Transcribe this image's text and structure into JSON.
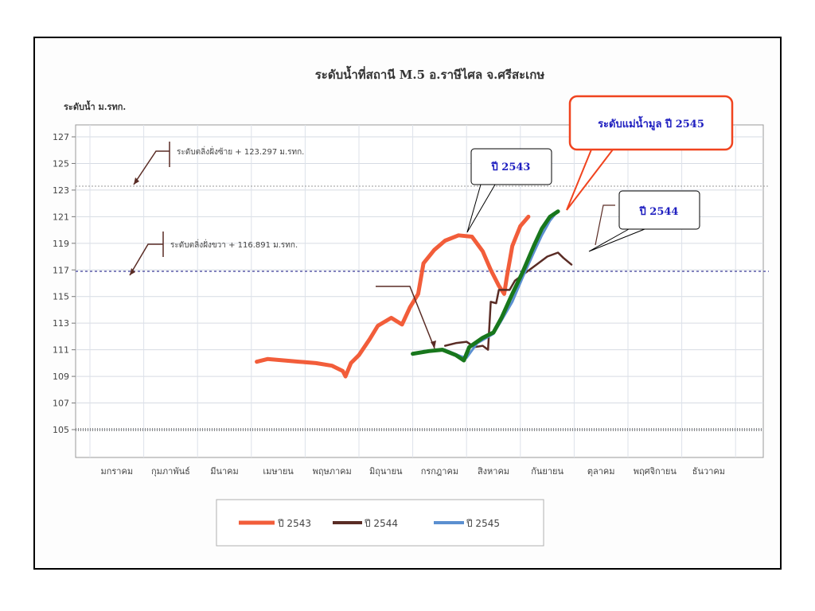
{
  "chart_data": {
    "type": "line",
    "title": "ระดับน้ำที่สถานี M.5  อ.ราษีไศล  จ.ศรีสะเกษ",
    "ylabel": "ระดับน้ำ ม.รทก.",
    "xlabel": "",
    "ylim": [
      104,
      128
    ],
    "yticks": [
      105,
      107,
      109,
      111,
      113,
      115,
      117,
      119,
      121,
      123,
      125,
      127
    ],
    "categories": [
      "มกราคม",
      "กุมภาพันธ์",
      "มีนาคม",
      "เมษายน",
      "พฤษภาคม",
      "มิถุนายน",
      "กรกฎาคม",
      "สิงหาคม",
      "กันยายน",
      "ตุลาคม",
      "พฤศจิกายน",
      "ธันวาคม"
    ],
    "grid": true,
    "legend_position": "bottom",
    "reference_lines": [
      {
        "label": "ระดับตลิ่งฝั่งซ้าย + 123.297 ม.รทก.",
        "value": 123.297
      },
      {
        "label": "ระดับตลิ่งฝั่งขวา + 116.891 ม.รทก.",
        "value": 116.891
      },
      {
        "value": 105
      }
    ],
    "series": [
      {
        "name": "ปี 2543",
        "color": "#f25d3a",
        "points": [
          [
            3.1,
            110.1
          ],
          [
            3.3,
            110.3
          ],
          [
            3.6,
            110.2
          ],
          [
            3.9,
            110.1
          ],
          [
            4.2,
            110.0
          ],
          [
            4.5,
            109.8
          ],
          [
            4.7,
            109.4
          ],
          [
            4.75,
            109.0
          ],
          [
            4.85,
            110.0
          ],
          [
            5.0,
            110.6
          ],
          [
            5.2,
            111.8
          ],
          [
            5.35,
            112.8
          ],
          [
            5.6,
            113.4
          ],
          [
            5.8,
            112.9
          ],
          [
            5.95,
            114.2
          ],
          [
            6.1,
            115.2
          ],
          [
            6.2,
            117.5
          ],
          [
            6.4,
            118.5
          ],
          [
            6.6,
            119.2
          ],
          [
            6.85,
            119.6
          ],
          [
            7.1,
            119.5
          ],
          [
            7.3,
            118.4
          ],
          [
            7.45,
            117.0
          ],
          [
            7.6,
            115.8
          ],
          [
            7.7,
            115.2
          ],
          [
            7.75,
            116.5
          ],
          [
            7.85,
            118.8
          ],
          [
            8.0,
            120.3
          ],
          [
            8.15,
            121.0
          ]
        ]
      },
      {
        "name": "ปี 2544",
        "color": "#5a2c25",
        "points": [
          [
            6.6,
            111.3
          ],
          [
            6.8,
            111.5
          ],
          [
            7.0,
            111.6
          ],
          [
            7.15,
            111.2
          ],
          [
            7.3,
            111.3
          ],
          [
            7.4,
            111.0
          ],
          [
            7.45,
            114.6
          ],
          [
            7.55,
            114.5
          ],
          [
            7.6,
            115.5
          ],
          [
            7.8,
            115.5
          ],
          [
            7.9,
            116.2
          ],
          [
            8.1,
            116.8
          ],
          [
            8.3,
            117.4
          ],
          [
            8.5,
            118.0
          ],
          [
            8.7,
            118.3
          ],
          [
            8.8,
            117.9
          ],
          [
            8.95,
            117.4
          ]
        ]
      },
      {
        "name": "ปี 2545",
        "color": "#5b8fd0",
        "points": [
          [
            6.2,
            110.9
          ],
          [
            6.6,
            111.0
          ],
          [
            6.9,
            110.5
          ],
          [
            7.0,
            110.4
          ],
          [
            7.2,
            111.5
          ],
          [
            7.5,
            112.2
          ],
          [
            7.65,
            113.2
          ],
          [
            7.85,
            114.6
          ],
          [
            8.05,
            116.5
          ],
          [
            8.25,
            118.3
          ],
          [
            8.4,
            119.6
          ],
          [
            8.55,
            120.7
          ],
          [
            8.65,
            121.2
          ]
        ]
      },
      {
        "name": "ระดับแม่น้ำมูล ปี 2545",
        "color": "#18771c",
        "points": [
          [
            6.0,
            110.7
          ],
          [
            6.3,
            110.9
          ],
          [
            6.55,
            111.0
          ],
          [
            6.8,
            110.6
          ],
          [
            6.95,
            110.2
          ],
          [
            7.05,
            111.2
          ],
          [
            7.3,
            111.9
          ],
          [
            7.5,
            112.3
          ],
          [
            7.65,
            113.4
          ],
          [
            7.85,
            115.2
          ],
          [
            8.05,
            116.9
          ],
          [
            8.25,
            118.8
          ],
          [
            8.4,
            120.1
          ],
          [
            8.55,
            121.0
          ],
          [
            8.7,
            121.4
          ]
        ]
      }
    ],
    "callouts": [
      {
        "label": "ปี 2543"
      },
      {
        "label": "ระดับแม่น้ำมูล ปี 2545"
      },
      {
        "label": "ปี 2544"
      }
    ],
    "legend": [
      {
        "label": "ปี 2543",
        "color": "#f25d3a"
      },
      {
        "label": "ปี 2544",
        "color": "#5a2c25"
      },
      {
        "label": "ปี 2545",
        "color": "#5b8fd0"
      }
    ]
  }
}
